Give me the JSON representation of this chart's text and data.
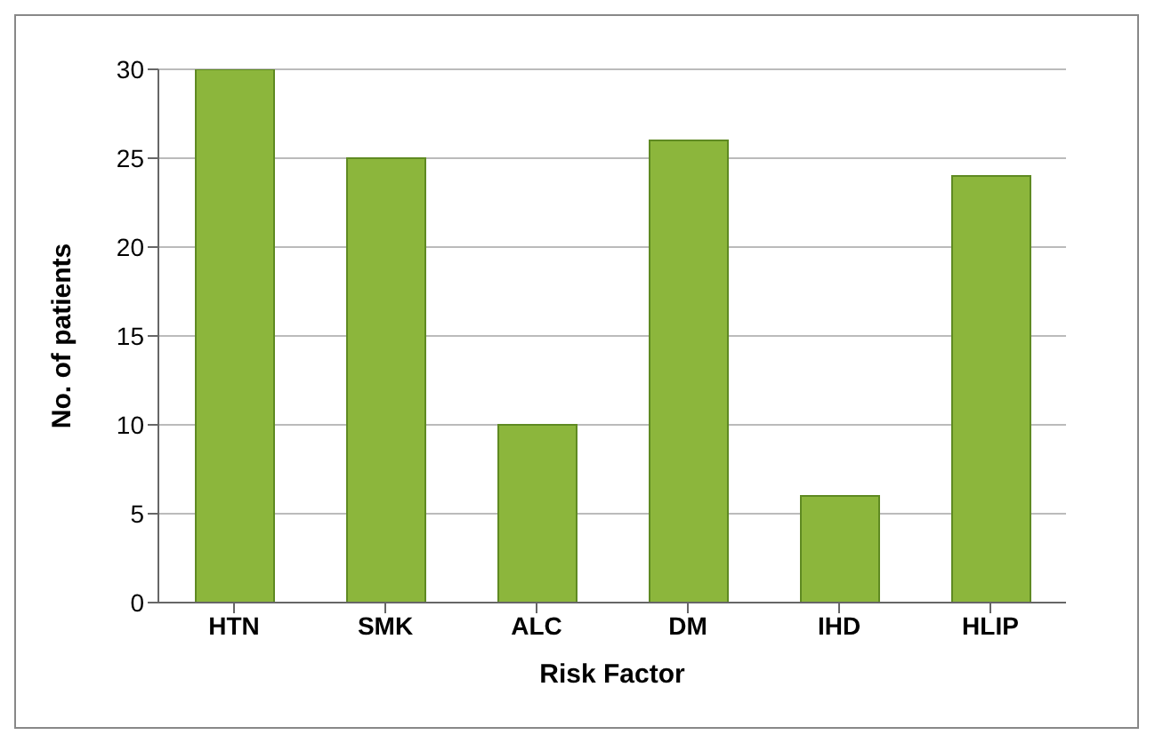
{
  "chart_data": {
    "type": "bar",
    "xlabel": "Risk Factor",
    "ylabel": "No. of patients",
    "categories": [
      "HTN",
      "SMK",
      "ALC",
      "DM",
      "IHD",
      "HLIP"
    ],
    "values": [
      30,
      25,
      10,
      26,
      6,
      24
    ],
    "color": "#8cb63c",
    "ylim": [
      0,
      30
    ],
    "yticks": [
      0,
      5,
      10,
      15,
      20,
      25,
      30
    ],
    "grid": "y"
  }
}
